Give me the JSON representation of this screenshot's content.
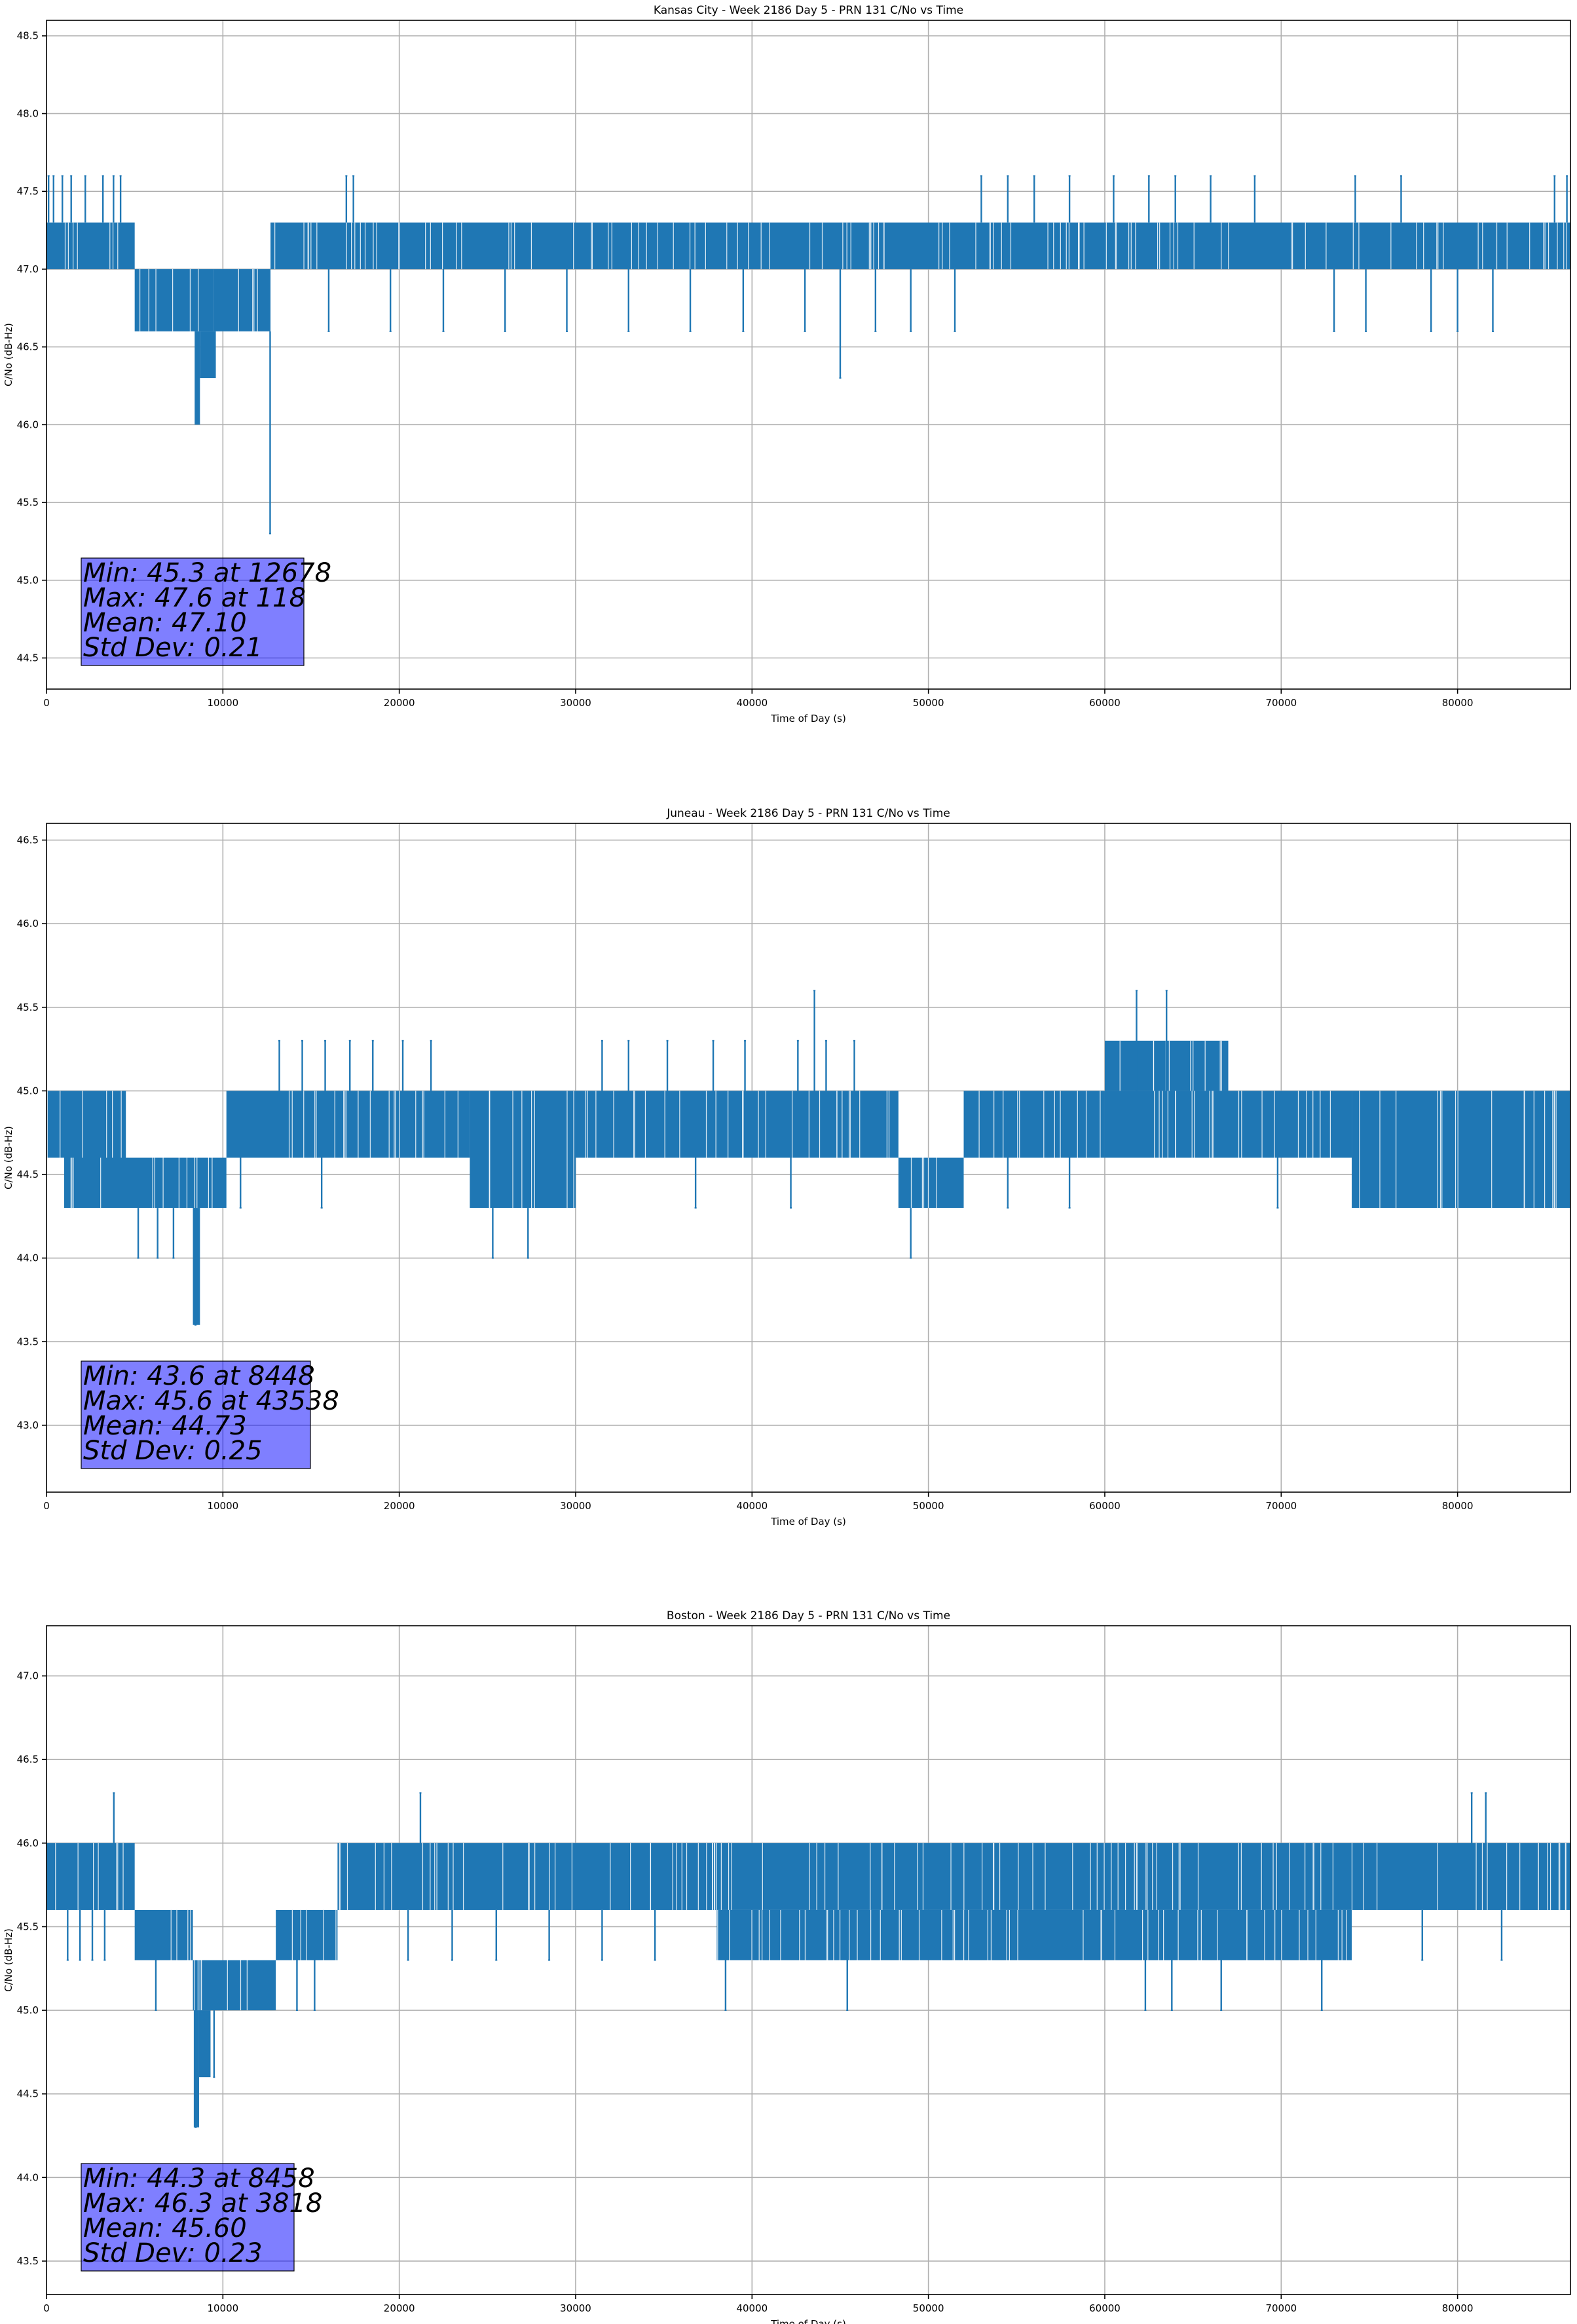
{
  "chart_data": [
    {
      "type": "line",
      "title": "Kansas City - Week 2186 Day 5 - PRN 131 C/No vs Time",
      "xlabel": "Time of Day (s)",
      "ylabel": "C/No (dB-Hz)",
      "xlim": [
        0,
        86400
      ],
      "ylim": [
        44.3,
        48.6
      ],
      "xticks": [
        0,
        10000,
        20000,
        30000,
        40000,
        50000,
        60000,
        70000,
        80000
      ],
      "yticks": [
        44.5,
        45.0,
        45.5,
        46.0,
        46.5,
        47.0,
        47.5,
        48.0,
        48.5
      ],
      "grid": true,
      "series_color": "#1f77b4",
      "series": [
        {
          "band_segments": [
            {
              "x": [
                0,
                5000
              ],
              "low": 47.0,
              "high": 47.3
            },
            {
              "x": [
                5000,
                9500
              ],
              "low": 46.6,
              "high": 47.0
            },
            {
              "x": [
                9500,
                12700
              ],
              "low": 46.6,
              "high": 47.0
            },
            {
              "x": [
                12700,
                86400
              ],
              "low": 47.0,
              "high": 47.3
            }
          ],
          "block_segments": [
            {
              "x": [
                8400,
                8700
              ],
              "low": 46.0,
              "high": 46.6
            },
            {
              "x": [
                8700,
                9600
              ],
              "low": 46.3,
              "high": 46.6
            }
          ],
          "spikes": [
            {
              "x": 118,
              "y": 47.6
            },
            {
              "x": 400,
              "y": 47.6
            },
            {
              "x": 900,
              "y": 47.6
            },
            {
              "x": 1400,
              "y": 47.6
            },
            {
              "x": 2200,
              "y": 47.6
            },
            {
              "x": 3200,
              "y": 47.6
            },
            {
              "x": 3800,
              "y": 47.6
            },
            {
              "x": 4200,
              "y": 47.6
            },
            {
              "x": 17000,
              "y": 47.6
            },
            {
              "x": 17400,
              "y": 47.6
            },
            {
              "x": 53000,
              "y": 47.6
            },
            {
              "x": 54500,
              "y": 47.6
            },
            {
              "x": 56000,
              "y": 47.6
            },
            {
              "x": 58000,
              "y": 47.6
            },
            {
              "x": 60500,
              "y": 47.6
            },
            {
              "x": 62500,
              "y": 47.6
            },
            {
              "x": 64000,
              "y": 47.6
            },
            {
              "x": 66000,
              "y": 47.6
            },
            {
              "x": 68500,
              "y": 47.6
            },
            {
              "x": 74200,
              "y": 47.6
            },
            {
              "x": 76800,
              "y": 47.6
            },
            {
              "x": 85500,
              "y": 47.6
            },
            {
              "x": 86200,
              "y": 47.6
            },
            {
              "x": 12678,
              "y": 45.3
            },
            {
              "x": 45000,
              "y": 46.3
            },
            {
              "x": 51500,
              "y": 46.6
            },
            {
              "x": 16000,
              "y": 46.6
            },
            {
              "x": 19500,
              "y": 46.6
            },
            {
              "x": 22500,
              "y": 46.6
            },
            {
              "x": 26000,
              "y": 46.6
            },
            {
              "x": 29500,
              "y": 46.6
            },
            {
              "x": 33000,
              "y": 46.6
            },
            {
              "x": 36500,
              "y": 46.6
            },
            {
              "x": 39500,
              "y": 46.6
            },
            {
              "x": 43000,
              "y": 46.6
            },
            {
              "x": 47000,
              "y": 46.6
            },
            {
              "x": 49000,
              "y": 46.6
            },
            {
              "x": 73000,
              "y": 46.6
            },
            {
              "x": 74800,
              "y": 46.6
            },
            {
              "x": 78500,
              "y": 46.6
            },
            {
              "x": 80000,
              "y": 46.6
            },
            {
              "x": 82000,
              "y": 46.6
            }
          ]
        }
      ],
      "stats_box": [
        "Min: 45.3 at 12678",
        "Max: 47.6 at 118",
        "Mean: 47.10",
        "Std Dev: 0.21"
      ]
    },
    {
      "type": "line",
      "title": "Juneau - Week 2186 Day 5 - PRN 131 C/No vs Time",
      "xlabel": "Time of Day (s)",
      "ylabel": "C/No (dB-Hz)",
      "xlim": [
        0,
        86400
      ],
      "ylim": [
        42.6,
        46.6
      ],
      "xticks": [
        0,
        10000,
        20000,
        30000,
        40000,
        50000,
        60000,
        70000,
        80000
      ],
      "yticks": [
        43.0,
        43.5,
        44.0,
        44.5,
        45.0,
        45.5,
        46.0,
        46.5
      ],
      "grid": true,
      "series_color": "#1f77b4",
      "series": [
        {
          "band_segments": [
            {
              "x": [
                0,
                4500
              ],
              "low": 44.6,
              "high": 45.0
            },
            {
              "x": [
                1000,
                10200
              ],
              "low": 44.3,
              "high": 44.6
            },
            {
              "x": [
                10200,
                24000
              ],
              "low": 44.6,
              "high": 45.0
            },
            {
              "x": [
                24000,
                30000
              ],
              "low": 44.3,
              "high": 45.0
            },
            {
              "x": [
                30000,
                48300
              ],
              "low": 44.6,
              "high": 45.0
            },
            {
              "x": [
                48300,
                52000
              ],
              "low": 44.3,
              "high": 44.6
            },
            {
              "x": [
                52000,
                60000
              ],
              "low": 44.6,
              "high": 45.0
            },
            {
              "x": [
                60000,
                67000
              ],
              "low": 45.0,
              "high": 45.3
            },
            {
              "x": [
                60000,
                74000
              ],
              "low": 44.6,
              "high": 45.0
            },
            {
              "x": [
                74000,
                86400
              ],
              "low": 44.3,
              "high": 45.0
            }
          ],
          "block_segments": [
            {
              "x": [
                8300,
                8700
              ],
              "low": 43.6,
              "high": 44.3
            }
          ],
          "spikes": [
            {
              "x": 8448,
              "y": 43.6
            },
            {
              "x": 43538,
              "y": 45.6
            },
            {
              "x": 61800,
              "y": 45.6
            },
            {
              "x": 63500,
              "y": 45.6
            },
            {
              "x": 5200,
              "y": 44.0
            },
            {
              "x": 6300,
              "y": 44.0
            },
            {
              "x": 7200,
              "y": 44.0
            },
            {
              "x": 25300,
              "y": 44.0
            },
            {
              "x": 27300,
              "y": 44.0
            },
            {
              "x": 49000,
              "y": 44.0
            },
            {
              "x": 13200,
              "y": 45.3
            },
            {
              "x": 14500,
              "y": 45.3
            },
            {
              "x": 15800,
              "y": 45.3
            },
            {
              "x": 17200,
              "y": 45.3
            },
            {
              "x": 18500,
              "y": 45.3
            },
            {
              "x": 20200,
              "y": 45.3
            },
            {
              "x": 21800,
              "y": 45.3
            },
            {
              "x": 31500,
              "y": 45.3
            },
            {
              "x": 33000,
              "y": 45.3
            },
            {
              "x": 35200,
              "y": 45.3
            },
            {
              "x": 37800,
              "y": 45.3
            },
            {
              "x": 39600,
              "y": 45.3
            },
            {
              "x": 42600,
              "y": 45.3
            },
            {
              "x": 44200,
              "y": 45.3
            },
            {
              "x": 45800,
              "y": 45.3
            },
            {
              "x": 11000,
              "y": 44.3
            },
            {
              "x": 15600,
              "y": 44.3
            },
            {
              "x": 36800,
              "y": 44.3
            },
            {
              "x": 42200,
              "y": 44.3
            },
            {
              "x": 54500,
              "y": 44.3
            },
            {
              "x": 58000,
              "y": 44.3
            },
            {
              "x": 69800,
              "y": 44.3
            }
          ]
        }
      ],
      "stats_box": [
        "Min: 43.6 at 8448",
        "Max: 45.6 at 43538",
        "Mean: 44.73",
        "Std Dev: 0.25"
      ]
    },
    {
      "type": "line",
      "title": "Boston - Week 2186 Day 5 - PRN 131 C/No vs Time",
      "xlabel": "Time of Day (s)",
      "ylabel": "C/No (dB-Hz)",
      "xlim": [
        0,
        86400
      ],
      "ylim": [
        43.3,
        47.3
      ],
      "xticks": [
        0,
        10000,
        20000,
        30000,
        40000,
        50000,
        60000,
        70000,
        80000
      ],
      "yticks": [
        43.5,
        44.0,
        44.5,
        45.0,
        45.5,
        46.0,
        46.5,
        47.0
      ],
      "grid": true,
      "series_color": "#1f77b4",
      "series": [
        {
          "band_segments": [
            {
              "x": [
                0,
                5000
              ],
              "low": 45.6,
              "high": 46.0
            },
            {
              "x": [
                5000,
                8300
              ],
              "low": 45.3,
              "high": 45.6
            },
            {
              "x": [
                8300,
                13000
              ],
              "low": 45.0,
              "high": 45.3
            },
            {
              "x": [
                13000,
                16500
              ],
              "low": 45.3,
              "high": 45.6
            },
            {
              "x": [
                16500,
                86400
              ],
              "low": 45.6,
              "high": 46.0
            },
            {
              "x": [
                38000,
                74000
              ],
              "low": 45.3,
              "high": 45.6
            }
          ],
          "block_segments": [
            {
              "x": [
                8350,
                8650
              ],
              "low": 44.3,
              "high": 45.0
            },
            {
              "x": [
                8650,
                9300
              ],
              "low": 44.6,
              "high": 45.0
            }
          ],
          "spikes": [
            {
              "x": 8458,
              "y": 44.3
            },
            {
              "x": 3818,
              "y": 46.3
            },
            {
              "x": 21200,
              "y": 46.3
            },
            {
              "x": 80800,
              "y": 46.3
            },
            {
              "x": 81600,
              "y": 46.3
            },
            {
              "x": 9500,
              "y": 44.6
            },
            {
              "x": 6200,
              "y": 45.0
            },
            {
              "x": 14200,
              "y": 45.0
            },
            {
              "x": 15200,
              "y": 45.0
            },
            {
              "x": 38500,
              "y": 45.0
            },
            {
              "x": 45400,
              "y": 45.0
            },
            {
              "x": 62300,
              "y": 45.0
            },
            {
              "x": 63800,
              "y": 45.0
            },
            {
              "x": 66600,
              "y": 45.0
            },
            {
              "x": 72300,
              "y": 45.0
            },
            {
              "x": 1200,
              "y": 45.3
            },
            {
              "x": 1900,
              "y": 45.3
            },
            {
              "x": 2600,
              "y": 45.3
            },
            {
              "x": 3300,
              "y": 45.3
            },
            {
              "x": 20500,
              "y": 45.3
            },
            {
              "x": 23000,
              "y": 45.3
            },
            {
              "x": 25500,
              "y": 45.3
            },
            {
              "x": 28500,
              "y": 45.3
            },
            {
              "x": 31500,
              "y": 45.3
            },
            {
              "x": 34500,
              "y": 45.3
            },
            {
              "x": 78000,
              "y": 45.3
            },
            {
              "x": 82500,
              "y": 45.3
            }
          ]
        }
      ],
      "stats_box": [
        "Min: 44.3 at 8458",
        "Max: 46.3 at 3818",
        "Mean: 45.60",
        "Std Dev: 0.23"
      ]
    }
  ]
}
